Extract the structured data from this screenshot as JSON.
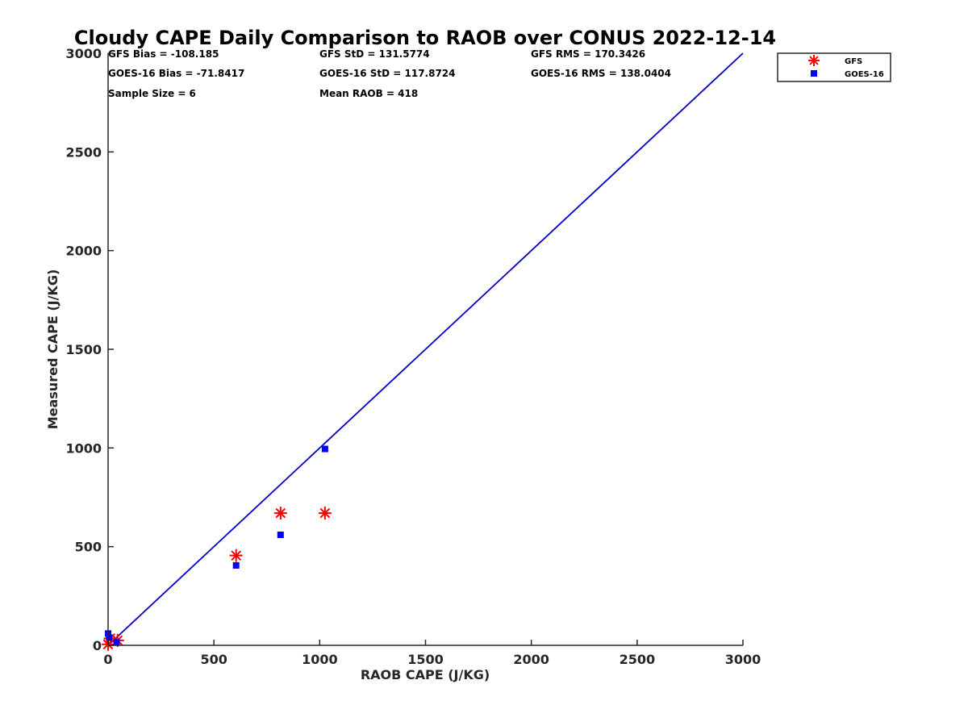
{
  "chart_data": {
    "type": "scatter",
    "title": "Cloudy CAPE Daily Comparison to RAOB over CONUS 2022-12-14",
    "xlabel": "RAOB CAPE (J/KG)",
    "ylabel": "Measured CAPE (J/KG)",
    "xlim": [
      0,
      3000
    ],
    "ylim": [
      0,
      3000
    ],
    "xticks": [
      0,
      500,
      1000,
      1500,
      2000,
      2500,
      3000
    ],
    "yticks": [
      0,
      500,
      1000,
      1500,
      2000,
      2500,
      3000
    ],
    "grid": false,
    "legend_position": "top-right outside",
    "stats": [
      [
        "GFS Bias = -108.185",
        "GFS StD = 131.5774",
        "GFS RMS = 170.3426"
      ],
      [
        "GOES-16 Bias = -71.8417",
        "GOES-16 StD = 117.8724",
        "GOES-16 RMS = 138.0404"
      ],
      [
        "Sample Size = 6",
        "Mean RAOB = 418",
        ""
      ]
    ],
    "series": [
      {
        "name": "GFS",
        "marker": "asterisk",
        "color": "#ff0000",
        "x": [
          0,
          10,
          45,
          605,
          815,
          1025
        ],
        "y": [
          5,
          35,
          25,
          455,
          670,
          670
        ]
      },
      {
        "name": "GOES-16",
        "marker": "square",
        "color": "#0000ff",
        "x": [
          0,
          5,
          40,
          605,
          815,
          1025
        ],
        "y": [
          60,
          40,
          15,
          405,
          560,
          995
        ]
      }
    ],
    "reference_line": {
      "color": "#0000cc",
      "x": [
        0,
        3000
      ],
      "y": [
        0,
        3000
      ]
    }
  }
}
